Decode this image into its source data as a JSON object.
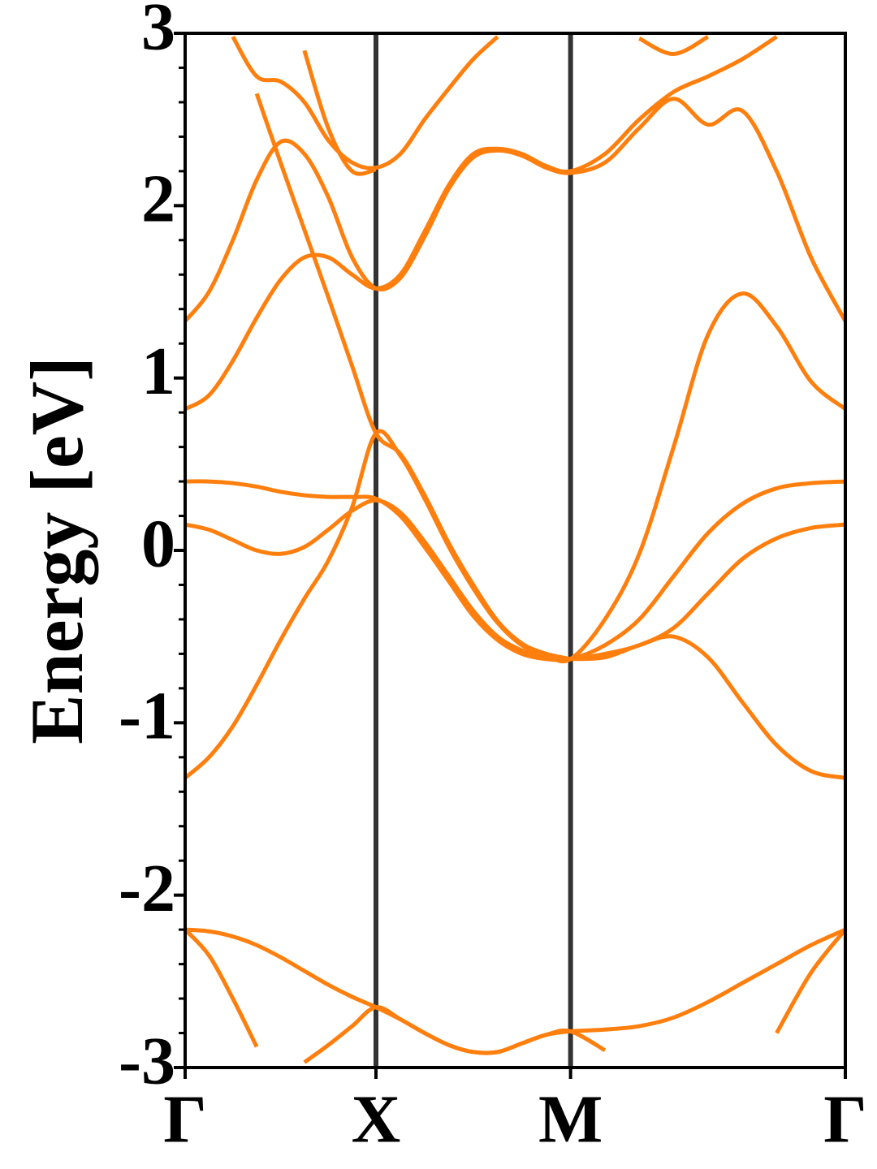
{
  "chart_data": {
    "type": "line",
    "y_label": "Energy [eV]",
    "x": [
      0,
      0.125,
      0.25,
      0.375,
      0.5,
      0.625,
      0.75,
      0.875,
      1,
      1.1275,
      1.255,
      1.3825,
      1.51,
      1.6375,
      1.765,
      1.8925,
      2.02,
      2.2,
      2.38,
      2.56,
      2.74,
      2.92,
      3.1,
      3.28,
      3.46
    ],
    "xlim": [
      0,
      3.46
    ],
    "xticks": [
      {
        "value": 0,
        "label": "Γ"
      },
      {
        "value": 1,
        "label": "X"
      },
      {
        "value": 2.02,
        "label": "M"
      },
      {
        "value": 3.46,
        "label": "Γ"
      }
    ],
    "ylim": [
      -3,
      3
    ],
    "yticks": [
      -3,
      -2,
      -1,
      0,
      1,
      2,
      3
    ],
    "yminorticks": [
      -2.8,
      -2.6,
      -2.4,
      -2.2,
      -1.8,
      -1.6,
      -1.4,
      -1.2,
      -0.8,
      -0.6,
      -0.4,
      -0.2,
      0.2,
      0.4,
      0.6,
      0.8,
      1.2,
      1.4,
      1.6,
      1.8,
      2.2,
      2.4,
      2.6,
      2.8
    ],
    "vertical_lines": true,
    "series": [
      {
        "color": "#ff7f0e",
        "values": [
          -2.2,
          -2.35,
          -2.6,
          -2.88,
          null,
          -2.97,
          -2.87,
          -2.76,
          -2.65,
          -2.72,
          -2.8,
          -2.87,
          -2.91,
          -2.91,
          -2.86,
          -2.81,
          -2.79,
          -2.9,
          null,
          null,
          null,
          null,
          null,
          null,
          null
        ]
      },
      {
        "color": "#ff7f0e",
        "values": [
          -2.2,
          -2.21,
          -2.24,
          -2.29,
          -2.36,
          -2.44,
          -2.52,
          -2.59,
          -2.65,
          -2.72,
          -2.8,
          -2.87,
          -2.91,
          -2.91,
          -2.86,
          -2.81,
          -2.79,
          -2.78,
          -2.76,
          -2.71,
          -2.62,
          -2.51,
          -2.4,
          -2.29,
          -2.2
        ]
      },
      {
        "color": "#ff7f0e",
        "values": [
          null,
          null,
          null,
          null,
          null,
          null,
          null,
          null,
          null,
          null,
          null,
          null,
          null,
          null,
          null,
          null,
          null,
          null,
          null,
          null,
          null,
          null,
          -2.8,
          -2.45,
          -2.2
        ]
      },
      {
        "color": "#ff7f0e",
        "values": [
          -1.32,
          -1.2,
          -1.02,
          -0.78,
          -0.52,
          -0.28,
          -0.06,
          0.25,
          0.68,
          0.55,
          0.3,
          0.02,
          -0.22,
          -0.42,
          -0.55,
          -0.61,
          -0.63,
          -0.4,
          -0.02,
          0.6,
          1.25,
          1.49,
          1.3,
          0.98,
          0.82
        ]
      },
      {
        "color": "#ff7f0e",
        "values": [
          0.15,
          0.12,
          0.06,
          0.0,
          -0.02,
          0.02,
          0.12,
          0.23,
          0.29,
          0.22,
          0.05,
          -0.15,
          -0.35,
          -0.5,
          -0.58,
          -0.62,
          -0.63,
          -0.6,
          -0.55,
          -0.45,
          -0.25,
          -0.05,
          0.07,
          0.13,
          0.15
        ]
      },
      {
        "color": "#ff7f0e",
        "values": [
          0.4,
          0.4,
          0.39,
          0.37,
          0.34,
          0.32,
          0.31,
          0.31,
          0.3,
          0.2,
          0.02,
          -0.18,
          -0.38,
          -0.52,
          -0.6,
          -0.63,
          -0.63,
          -0.55,
          -0.4,
          -0.15,
          0.1,
          0.27,
          0.36,
          0.39,
          0.4
        ]
      },
      {
        "color": "#ff7f0e",
        "values": [
          null,
          null,
          null,
          null,
          null,
          null,
          null,
          null,
          null,
          null,
          null,
          null,
          null,
          null,
          null,
          null,
          -0.63,
          -0.62,
          -0.55,
          -0.5,
          -0.62,
          -0.88,
          -1.13,
          -1.28,
          -1.32
        ]
      },
      {
        "color": "#ff7f0e",
        "values": [
          0.82,
          0.9,
          1.1,
          1.35,
          1.57,
          1.7,
          1.7,
          1.6,
          1.52,
          1.6,
          1.85,
          2.12,
          2.3,
          2.33,
          2.3,
          2.23,
          2.2,
          2.3,
          2.5,
          2.66,
          2.75,
          2.85,
          2.98,
          null,
          null
        ]
      },
      {
        "color": "#ff7f0e",
        "values": [
          1.33,
          1.5,
          1.8,
          2.15,
          2.37,
          2.3,
          2.05,
          1.7,
          1.52,
          1.58,
          1.82,
          2.1,
          2.28,
          2.32,
          2.29,
          2.22,
          2.19,
          2.25,
          2.45,
          2.62,
          2.47,
          2.55,
          2.2,
          1.7,
          1.33
        ]
      },
      {
        "color": "#ff7f0e",
        "values": [
          null,
          null,
          null,
          2.65,
          2.25,
          1.86,
          1.47,
          1.07,
          0.68,
          0.56,
          0.32,
          0.04,
          -0.2,
          -0.41,
          -0.54,
          -0.6,
          -0.63,
          null,
          null,
          null,
          null,
          null,
          null,
          null,
          null
        ]
      },
      {
        "color": "#ff7f0e",
        "values": [
          null,
          null,
          2.98,
          2.75,
          2.72,
          2.6,
          2.38,
          2.25,
          2.22,
          2.3,
          2.5,
          2.68,
          2.85,
          2.98,
          null,
          null,
          null,
          null,
          null,
          null,
          null,
          null,
          null,
          null,
          null
        ]
      },
      {
        "color": "#ff7f0e",
        "values": [
          null,
          null,
          null,
          null,
          null,
          2.9,
          2.45,
          2.2,
          2.21,
          null,
          null,
          null,
          null,
          null,
          null,
          null,
          null,
          null,
          null,
          null,
          null,
          null,
          null,
          null,
          null
        ]
      },
      {
        "color": "#ff7f0e",
        "values": [
          null,
          null,
          null,
          null,
          null,
          null,
          null,
          null,
          null,
          null,
          null,
          null,
          null,
          null,
          null,
          null,
          null,
          null,
          2.97,
          2.88,
          2.98,
          null,
          null,
          null,
          null
        ]
      }
    ]
  }
}
